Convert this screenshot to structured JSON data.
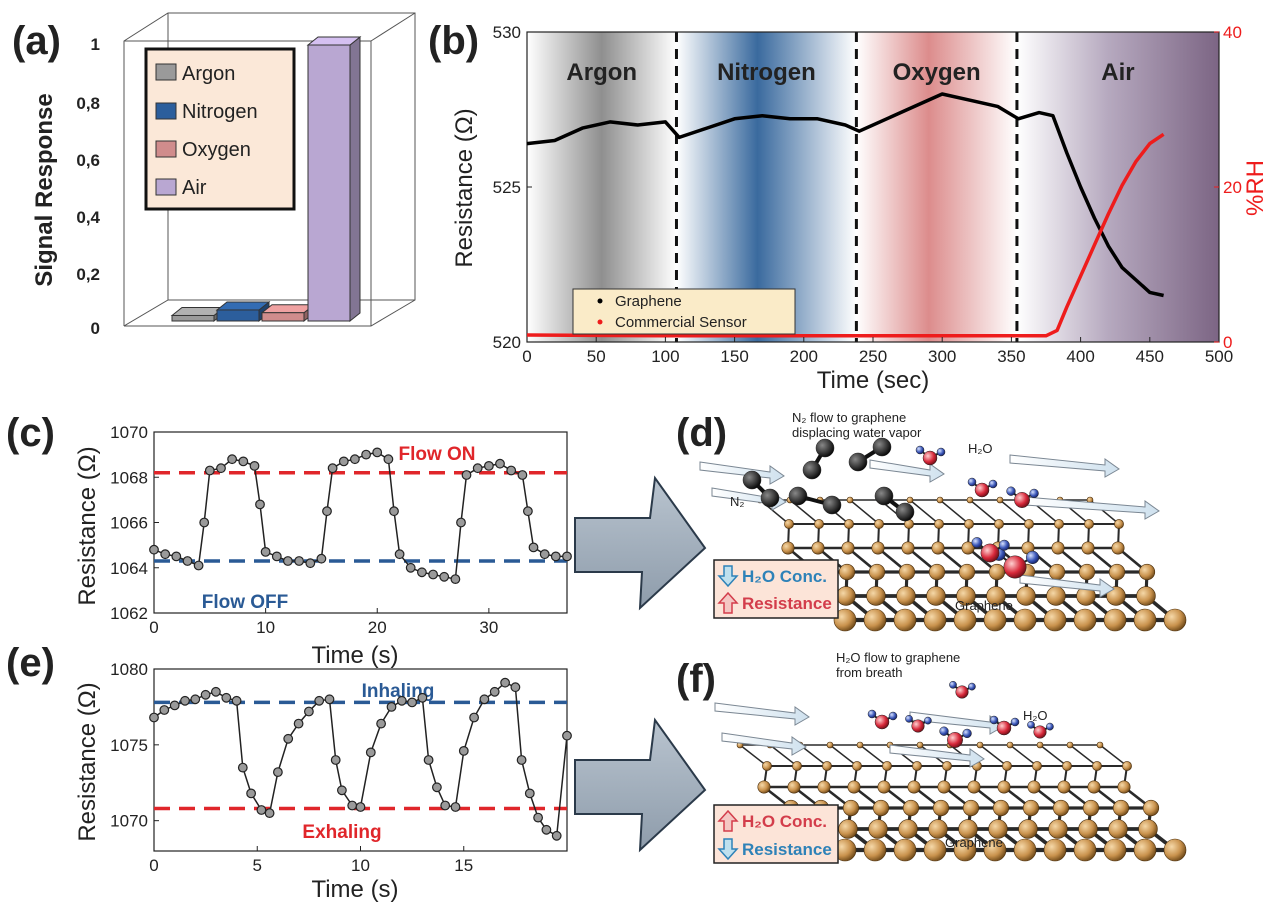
{
  "panels": {
    "a": "(a)",
    "b": "(b)",
    "c": "(c)",
    "d": "(d)",
    "e": "(e)",
    "f": "(f)"
  },
  "chart_data": [
    {
      "id": "a",
      "type": "bar",
      "ylabel": "Signal Response",
      "yticks": [
        "1",
        "0,8",
        "0,6",
        "0,4",
        "0,2",
        "0"
      ],
      "ylim": [
        0,
        1
      ],
      "categories": [
        "Argon",
        "Nitrogen",
        "Oxygen",
        "Air"
      ],
      "values": [
        0.02,
        0.04,
        0.03,
        1.0
      ],
      "colors": [
        "#9a9a9a",
        "#2c5e9c",
        "#d08c8c",
        "#b9a7d2"
      ],
      "legend": [
        "Argon",
        "Nitrogen",
        "Oxygen",
        "Air"
      ],
      "legend_position": "top-left",
      "legend_bg": "#fbe8d8"
    },
    {
      "id": "b",
      "type": "line",
      "xlabel": "Time (sec)",
      "ylabel": "Resistance (Ω)",
      "y2label": "%RH",
      "xlim": [
        0,
        500
      ],
      "ylim": [
        520,
        530
      ],
      "y2lim": [
        0,
        40
      ],
      "xticks": [
        "0",
        "50",
        "100",
        "150",
        "200",
        "250",
        "300",
        "350",
        "400",
        "450",
        "500"
      ],
      "yticks": [
        "520",
        "525",
        "530"
      ],
      "y2ticks": [
        "0",
        "20",
        "40"
      ],
      "regions": [
        {
          "label": "Argon",
          "from": 0,
          "to": 108,
          "color": "#909090"
        },
        {
          "label": "Nitrogen",
          "from": 108,
          "to": 238,
          "color": "#2e5f95"
        },
        {
          "label": "Oxygen",
          "from": 238,
          "to": 354,
          "color": "#d27777"
        },
        {
          "label": "Air",
          "from": 354,
          "to": 500,
          "color": "#6c5478"
        }
      ],
      "series": [
        {
          "name": "Graphene",
          "color": "#000000",
          "x": [
            0,
            20,
            40,
            60,
            80,
            100,
            110,
            130,
            150,
            170,
            190,
            210,
            230,
            240,
            260,
            280,
            300,
            320,
            340,
            355,
            370,
            380,
            390,
            400,
            410,
            420,
            430,
            440,
            450,
            460
          ],
          "y": [
            526.4,
            526.5,
            526.9,
            527.1,
            527.0,
            527.1,
            526.6,
            526.9,
            527.2,
            527.3,
            527.2,
            527.2,
            527.0,
            526.8,
            527.2,
            527.6,
            528.0,
            527.8,
            527.6,
            527.2,
            527.4,
            527.3,
            526.1,
            525.0,
            524.0,
            523.1,
            522.4,
            522.0,
            521.6,
            521.5
          ]
        },
        {
          "name": "Commercial Sensor",
          "color": "#ee1c1c",
          "axis": "y2",
          "x": [
            0,
            100,
            200,
            300,
            375,
            383,
            390,
            400,
            410,
            420,
            430,
            440,
            450,
            460
          ],
          "y": [
            0.9,
            0.8,
            0.8,
            0.8,
            0.8,
            1.5,
            4.5,
            8.5,
            12.5,
            16.5,
            20.2,
            23.3,
            25.6,
            26.8
          ]
        }
      ],
      "legend_position": "bottom-left",
      "legend_bg": "#faebc8"
    },
    {
      "id": "c",
      "type": "scatter",
      "xlabel": "Time (s)",
      "ylabel": "Resistance (Ω)",
      "xlim": [
        0,
        37
      ],
      "ylim": [
        1062,
        1070
      ],
      "xticks": [
        "0",
        "10",
        "20",
        "30"
      ],
      "yticks": [
        "1062",
        "1064",
        "1066",
        "1068",
        "1070"
      ],
      "annotations": [
        {
          "text": "Flow ON",
          "y": 1068.2,
          "color": "#e0262a"
        },
        {
          "text": "Flow OFF",
          "y": 1064.3,
          "color": "#2a5a95"
        }
      ],
      "series": [
        {
          "name": "",
          "x": [
            0,
            1,
            2,
            3,
            4,
            4.5,
            5,
            6,
            7,
            8,
            9,
            9.5,
            10,
            11,
            12,
            13,
            14,
            15,
            15.5,
            16,
            17,
            18,
            19,
            20,
            21,
            21.5,
            22,
            23,
            24,
            25,
            26,
            27,
            27.5,
            28,
            29,
            30,
            31,
            32,
            33,
            33.5,
            34,
            35,
            36,
            37
          ],
          "y": [
            1064.8,
            1064.6,
            1064.5,
            1064.3,
            1064.1,
            1066.0,
            1068.3,
            1068.4,
            1068.8,
            1068.7,
            1068.5,
            1066.8,
            1064.7,
            1064.5,
            1064.3,
            1064.3,
            1064.2,
            1064.4,
            1066.5,
            1068.4,
            1068.7,
            1068.8,
            1069.0,
            1069.1,
            1068.8,
            1066.5,
            1064.6,
            1064.0,
            1063.8,
            1063.7,
            1063.6,
            1063.5,
            1066.0,
            1068.1,
            1068.4,
            1068.5,
            1068.6,
            1068.3,
            1068.1,
            1066.5,
            1064.9,
            1064.6,
            1064.5,
            1064.5
          ]
        }
      ]
    },
    {
      "id": "e",
      "type": "scatter",
      "xlabel": "Time (s)",
      "ylabel": "Resistance (Ω)",
      "xlim": [
        0,
        20
      ],
      "ylim": [
        1068,
        1080
      ],
      "xticks": [
        "0",
        "5",
        "10",
        "15"
      ],
      "yticks": [
        "1070",
        "1075",
        "1080"
      ],
      "annotations": [
        {
          "text": "Inhaling",
          "y": 1077.8,
          "color": "#2a5a95"
        },
        {
          "text": "Exhaling",
          "y": 1070.8,
          "color": "#e0262a"
        }
      ],
      "series": [
        {
          "name": "",
          "x": [
            0,
            0.5,
            1,
            1.5,
            2,
            2.5,
            3,
            3.5,
            4,
            4.3,
            4.7,
            5.2,
            5.6,
            6,
            6.5,
            7,
            7.5,
            8,
            8.5,
            8.8,
            9.1,
            9.6,
            10,
            10.5,
            11,
            11.5,
            12,
            12.5,
            13,
            13.3,
            13.7,
            14.1,
            14.6,
            15,
            15.5,
            16,
            16.5,
            17,
            17.5,
            17.8,
            18.2,
            18.6,
            19,
            19.5,
            20
          ],
          "y": [
            1076.8,
            1077.3,
            1077.6,
            1077.9,
            1078.0,
            1078.3,
            1078.5,
            1078.1,
            1077.9,
            1073.5,
            1071.8,
            1070.7,
            1070.5,
            1073.2,
            1075.4,
            1076.4,
            1077.2,
            1077.9,
            1078.0,
            1074.0,
            1072.0,
            1071.0,
            1070.9,
            1074.5,
            1076.4,
            1077.5,
            1077.9,
            1077.8,
            1078.1,
            1074.0,
            1072.2,
            1071.0,
            1070.9,
            1074.6,
            1076.8,
            1078.0,
            1078.5,
            1079.1,
            1078.8,
            1074.0,
            1071.8,
            1070.2,
            1069.4,
            1069.0,
            1075.6
          ]
        }
      ]
    }
  ],
  "diagram_d": {
    "caption": "N₂ flow to graphene displacing water vapor",
    "caption_lines": [
      "N₂ flow to graphene",
      "displacing water vapor"
    ],
    "h2o_label": "H₂O",
    "n2_label": "N₂",
    "graphene_label": "Graphene",
    "box_lines": [
      "H₂O Conc.",
      "Resistance"
    ],
    "box_arrows": [
      "down",
      "up"
    ],
    "box_colors": [
      "#2e82b8",
      "#d33d4b"
    ]
  },
  "diagram_f": {
    "caption": "H₂O flow to graphene from breath",
    "caption_lines": [
      "H₂O flow to graphene",
      "from breath"
    ],
    "h2o_label": "H₂O",
    "graphene_label": "Graphene",
    "box_lines": [
      "H₂O Conc.",
      "Resistance"
    ],
    "box_arrows": [
      "up",
      "down"
    ],
    "box_colors": [
      "#d33d4b",
      "#2e82b8"
    ]
  }
}
